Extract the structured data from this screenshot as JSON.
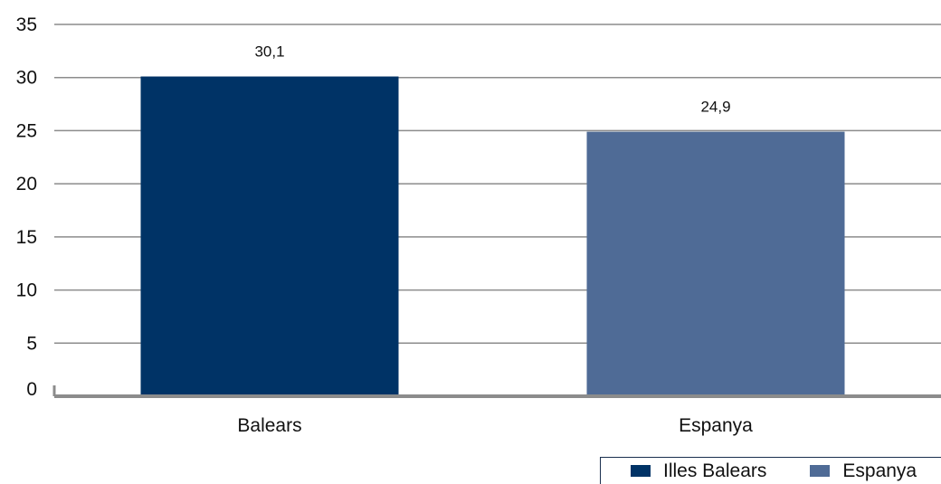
{
  "chart_data": {
    "type": "bar",
    "categories": [
      "Balears",
      "Espanya"
    ],
    "values": [
      30.1,
      24.9
    ],
    "value_labels": [
      "30,1",
      "24,9"
    ],
    "bar_colors": [
      "#003366",
      "#4f6b96"
    ],
    "ylim": [
      0,
      35
    ],
    "yticks": [
      0,
      5,
      10,
      15,
      20,
      25,
      30,
      35
    ],
    "ytick_labels": [
      "0",
      "5",
      "10",
      "15",
      "20",
      "25",
      "30",
      "35"
    ],
    "grid": true,
    "legend_position": "bottom-right",
    "legend": [
      {
        "label": "Illes Balears",
        "color": "#003366"
      },
      {
        "label": "Espanya",
        "color": "#4f6b96"
      }
    ]
  }
}
